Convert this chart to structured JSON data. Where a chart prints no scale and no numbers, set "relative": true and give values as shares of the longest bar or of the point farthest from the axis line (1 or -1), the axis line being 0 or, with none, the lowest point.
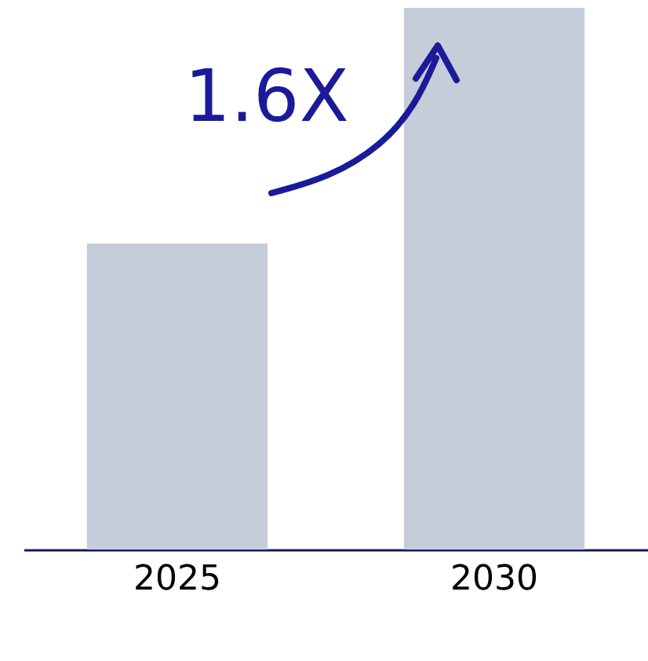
{
  "chart_data": {
    "type": "bar",
    "relative": true,
    "categories": [
      "2025",
      "2030"
    ],
    "values": [
      0.565,
      1
    ],
    "color": "#c5ccda",
    "annotations": [
      "1.6X"
    ]
  }
}
